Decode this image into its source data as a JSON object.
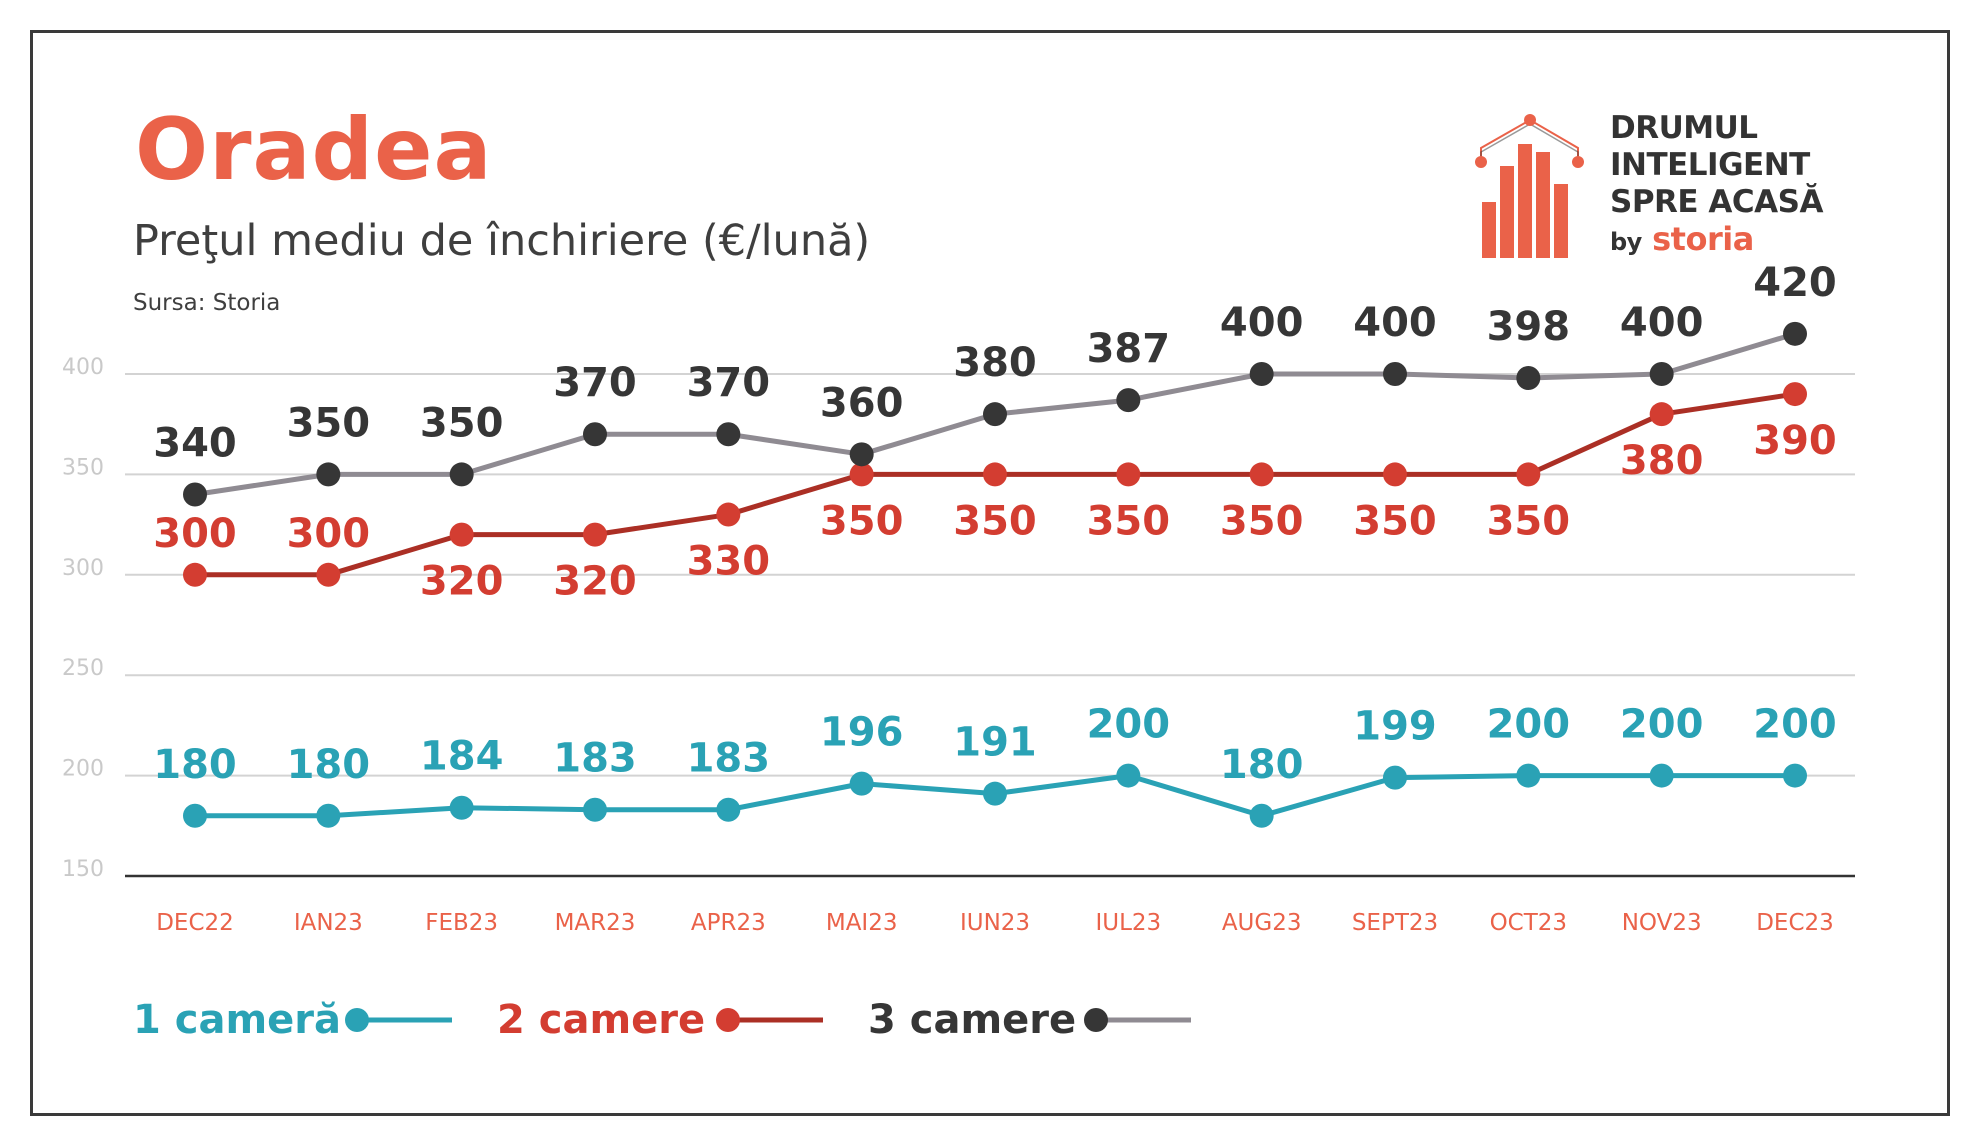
{
  "header": {
    "title": "Oradea",
    "subtitle": "Preţul mediu de închiriere (€/lună)",
    "source": "Sursa: Storia"
  },
  "logo": {
    "line1": "DRUMUL",
    "line2": "INTELIGENT",
    "line3": "SPRE ACASĂ",
    "by": "by",
    "brand": "storia"
  },
  "colors": {
    "accent": "#ea6249",
    "one_room": "#2aa2b5",
    "two_rooms_line": "#ab2f25",
    "two_rooms_point": "#d33d31",
    "three_rooms_line": "#8f8b92",
    "three_rooms_point": "#363636",
    "grid": "#d3d3d3",
    "axis": "#333333",
    "ytick": "#c9c9c9"
  },
  "chart_data": {
    "type": "line",
    "title": "Preţul mediu de închiriere (€/lună)",
    "xlabel": "",
    "ylabel": "",
    "categories": [
      "DEC22",
      "IAN23",
      "FEB23",
      "MAR23",
      "APR23",
      "MAI23",
      "IUN23",
      "IUL23",
      "AUG23",
      "SEPT23",
      "OCT23",
      "NOV23",
      "DEC23"
    ],
    "ylim": [
      150,
      400
    ],
    "yticks": [
      150,
      200,
      250,
      300,
      350,
      400
    ],
    "grid": true,
    "legend_position": "bottom-left",
    "series": [
      {
        "name": "1 cameră",
        "values": [
          180,
          180,
          184,
          183,
          183,
          196,
          191,
          200,
          180,
          199,
          200,
          200,
          200
        ]
      },
      {
        "name": "2 camere",
        "values": [
          300,
          300,
          320,
          320,
          330,
          350,
          350,
          350,
          350,
          350,
          350,
          380,
          390
        ]
      },
      {
        "name": "3 camere",
        "values": [
          340,
          350,
          350,
          370,
          370,
          360,
          380,
          387,
          400,
          400,
          398,
          400,
          420
        ]
      }
    ]
  }
}
